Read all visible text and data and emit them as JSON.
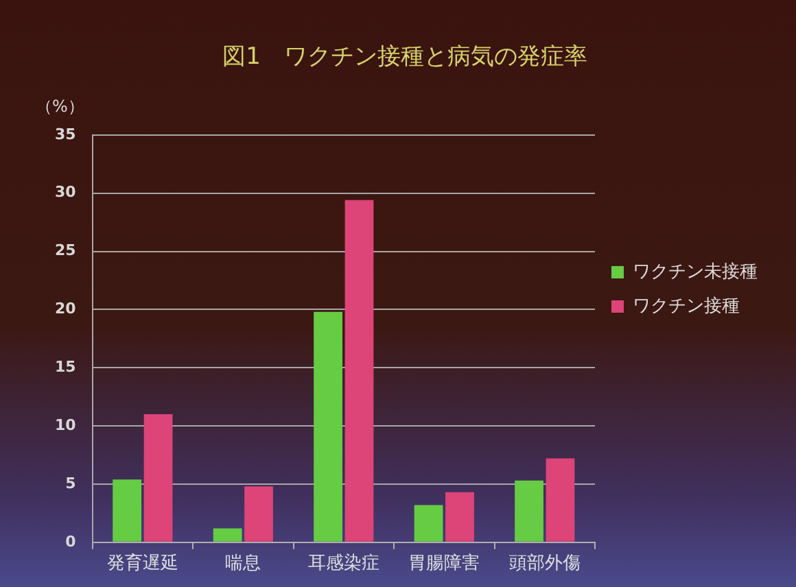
{
  "chart_data": {
    "type": "bar",
    "title": "図1　ワクチン接種と病気の発症率",
    "ylabel": "（%）",
    "categories": [
      "発育遅延",
      "喘息",
      "耳感染症",
      "胃腸障害",
      "頭部外傷"
    ],
    "series": [
      {
        "name": "ワクチン未接種",
        "color": "#66cc44",
        "values": [
          5.4,
          1.2,
          19.8,
          3.2,
          5.3
        ]
      },
      {
        "name": "ワクチン接種",
        "color": "#dd4477",
        "values": [
          11.0,
          4.8,
          29.4,
          4.3,
          7.2
        ]
      }
    ],
    "ylim": [
      0,
      35
    ],
    "yticks": [
      0,
      5,
      10,
      15,
      20,
      25,
      30,
      35
    ],
    "grid": "y",
    "legend": "right"
  }
}
